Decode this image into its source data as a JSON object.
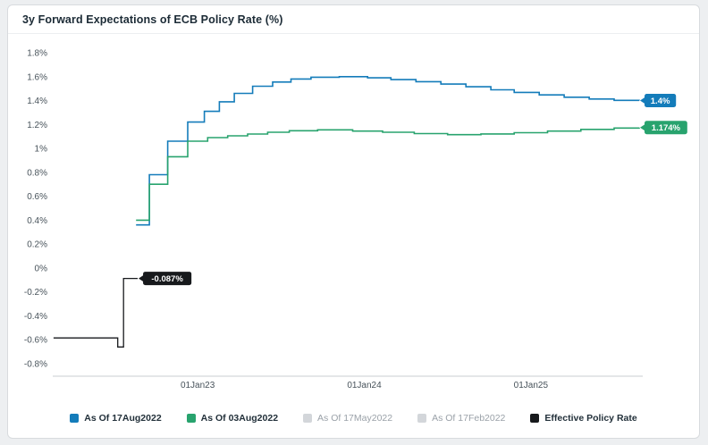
{
  "chart_data": {
    "type": "line",
    "step": true,
    "title": "3y Forward Expectations of ECB Policy Rate (%)",
    "xlabel": "",
    "ylabel": "",
    "x_format": "decimal_year",
    "xlim": [
      2022.13,
      2025.65
    ],
    "ylim": [
      -0.8,
      1.8
    ],
    "grid": false,
    "legend_position": "bottom",
    "y_ticks": [
      {
        "v": 1.8,
        "label": "1.8%"
      },
      {
        "v": 1.6,
        "label": "1.6%"
      },
      {
        "v": 1.4,
        "label": "1.4%"
      },
      {
        "v": 1.2,
        "label": "1.2%"
      },
      {
        "v": 1.0,
        "label": "1%"
      },
      {
        "v": 0.8,
        "label": "0.8%"
      },
      {
        "v": 0.6,
        "label": "0.6%"
      },
      {
        "v": 0.4,
        "label": "0.4%"
      },
      {
        "v": 0.2,
        "label": "0.2%"
      },
      {
        "v": 0.0,
        "label": "0%"
      },
      {
        "v": -0.2,
        "label": "-0.2%"
      },
      {
        "v": -0.4,
        "label": "-0.4%"
      },
      {
        "v": -0.6,
        "label": "-0.6%"
      },
      {
        "v": -0.8,
        "label": "-0.8%"
      }
    ],
    "x_ticks": [
      {
        "v": 2023,
        "label": "01Jan23"
      },
      {
        "v": 2024,
        "label": "01Jan24"
      },
      {
        "v": 2025,
        "label": "01Jan25"
      }
    ],
    "series": [
      {
        "name": "As Of 17Aug2022",
        "color": "#147cba",
        "swatch": "#147cba",
        "active": true,
        "end_label": "1.4%",
        "points": [
          [
            2022.63,
            0.36
          ],
          [
            2022.71,
            0.78
          ],
          [
            2022.82,
            1.06
          ],
          [
            2022.94,
            1.22
          ],
          [
            2023.04,
            1.31
          ],
          [
            2023.13,
            1.39
          ],
          [
            2023.22,
            1.46
          ],
          [
            2023.33,
            1.52
          ],
          [
            2023.45,
            1.555
          ],
          [
            2023.56,
            1.58
          ],
          [
            2023.68,
            1.595
          ],
          [
            2023.85,
            1.6
          ],
          [
            2024.02,
            1.59
          ],
          [
            2024.16,
            1.575
          ],
          [
            2024.31,
            1.558
          ],
          [
            2024.46,
            1.538
          ],
          [
            2024.61,
            1.515
          ],
          [
            2024.76,
            1.49
          ],
          [
            2024.9,
            1.468
          ],
          [
            2025.05,
            1.447
          ],
          [
            2025.2,
            1.428
          ],
          [
            2025.35,
            1.413
          ],
          [
            2025.5,
            1.402
          ],
          [
            2025.65,
            1.4
          ]
        ]
      },
      {
        "name": "As Of 03Aug2022",
        "color": "#28a36e",
        "swatch": "#28a36e",
        "active": true,
        "end_label": "1.174%",
        "points": [
          [
            2022.63,
            0.4
          ],
          [
            2022.71,
            0.7
          ],
          [
            2022.82,
            0.93
          ],
          [
            2022.94,
            1.06
          ],
          [
            2023.06,
            1.09
          ],
          [
            2023.18,
            1.105
          ],
          [
            2023.3,
            1.12
          ],
          [
            2023.42,
            1.135
          ],
          [
            2023.55,
            1.148
          ],
          [
            2023.72,
            1.155
          ],
          [
            2023.93,
            1.145
          ],
          [
            2024.11,
            1.135
          ],
          [
            2024.3,
            1.124
          ],
          [
            2024.5,
            1.115
          ],
          [
            2024.7,
            1.121
          ],
          [
            2024.9,
            1.131
          ],
          [
            2025.1,
            1.145
          ],
          [
            2025.3,
            1.159
          ],
          [
            2025.5,
            1.17
          ],
          [
            2025.65,
            1.174
          ]
        ]
      },
      {
        "name": "As Of 17May2022",
        "color": "#d3d6da",
        "swatch": "#d3d6da",
        "active": false,
        "points": []
      },
      {
        "name": "As Of 17Feb2022",
        "color": "#d3d6da",
        "swatch": "#d3d6da",
        "active": false,
        "points": []
      },
      {
        "name": "Effective Policy Rate",
        "color": "#17191c",
        "swatch": "#17191c",
        "active": true,
        "end_label": "-0.087%",
        "points": [
          [
            2022.135,
            -0.585
          ],
          [
            2022.52,
            -0.66
          ],
          [
            2022.555,
            -0.087
          ],
          [
            2022.64,
            -0.087
          ]
        ]
      }
    ]
  }
}
